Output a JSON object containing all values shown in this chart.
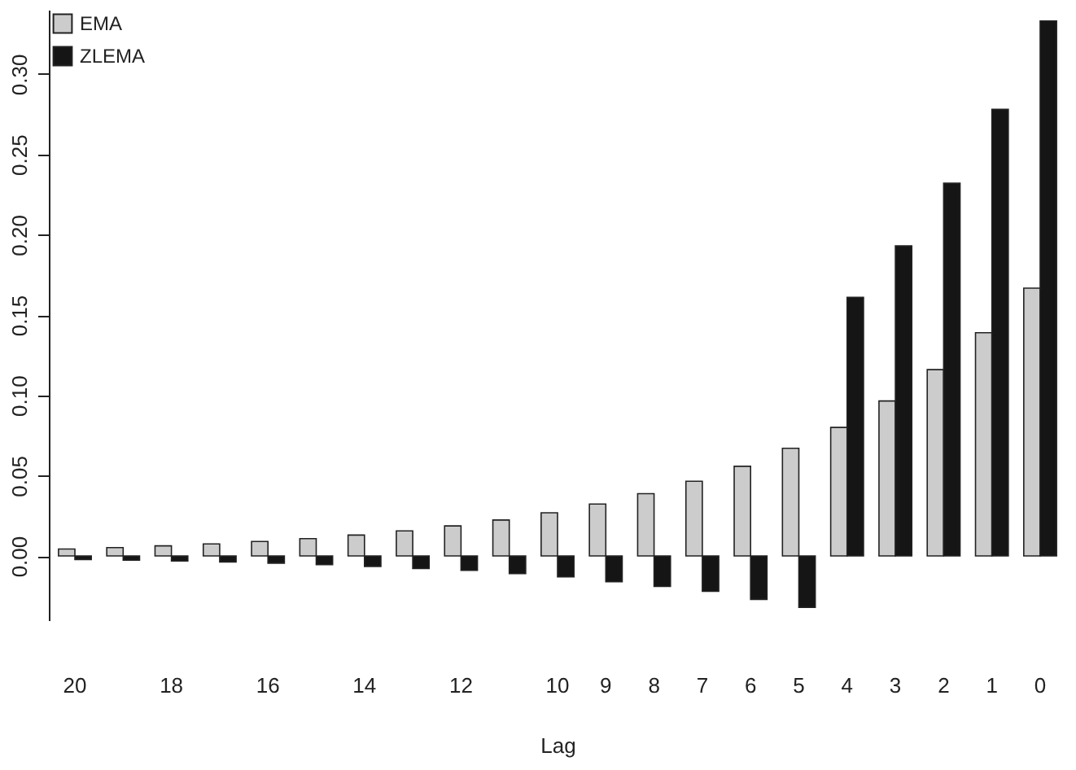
{
  "chart_data": {
    "type": "bar",
    "xlabel": "Lag",
    "categories": [
      "20",
      null,
      "18",
      null,
      "16",
      null,
      "14",
      null,
      "12",
      null,
      "10",
      "9",
      "8",
      "7",
      "6",
      "5",
      "4",
      "3",
      "2",
      "1",
      "0"
    ],
    "series": [
      {
        "name": "EMA",
        "color": "#cccccc",
        "values": [
          0.0043,
          0.0052,
          0.0063,
          0.0075,
          0.009,
          0.0108,
          0.013,
          0.0156,
          0.0187,
          0.0224,
          0.0269,
          0.0323,
          0.0388,
          0.0465,
          0.0558,
          0.067,
          0.08,
          0.0965,
          0.116,
          0.139,
          0.1667
        ]
      },
      {
        "name": "ZLEMA",
        "color": "#151515",
        "values": [
          -0.0022,
          -0.0026,
          -0.0031,
          -0.0037,
          -0.0045,
          -0.0054,
          -0.0065,
          -0.0078,
          -0.009,
          -0.011,
          -0.013,
          -0.016,
          -0.019,
          -0.022,
          -0.027,
          -0.032,
          0.161,
          0.193,
          0.232,
          0.278,
          0.333
        ]
      }
    ],
    "ylim": [
      -0.04,
      0.34
    ],
    "yticks": [
      {
        "value": 0,
        "label": "0.00"
      },
      {
        "value": 0.05,
        "label": "0.05"
      },
      {
        "value": 0.1,
        "label": "0.10"
      },
      {
        "value": 0.15,
        "label": "0.15"
      },
      {
        "value": 0.2,
        "label": "0.20"
      },
      {
        "value": 0.25,
        "label": "0.25"
      },
      {
        "value": 0.3,
        "label": "0.30"
      }
    ],
    "grid": false,
    "legend": "top left"
  }
}
